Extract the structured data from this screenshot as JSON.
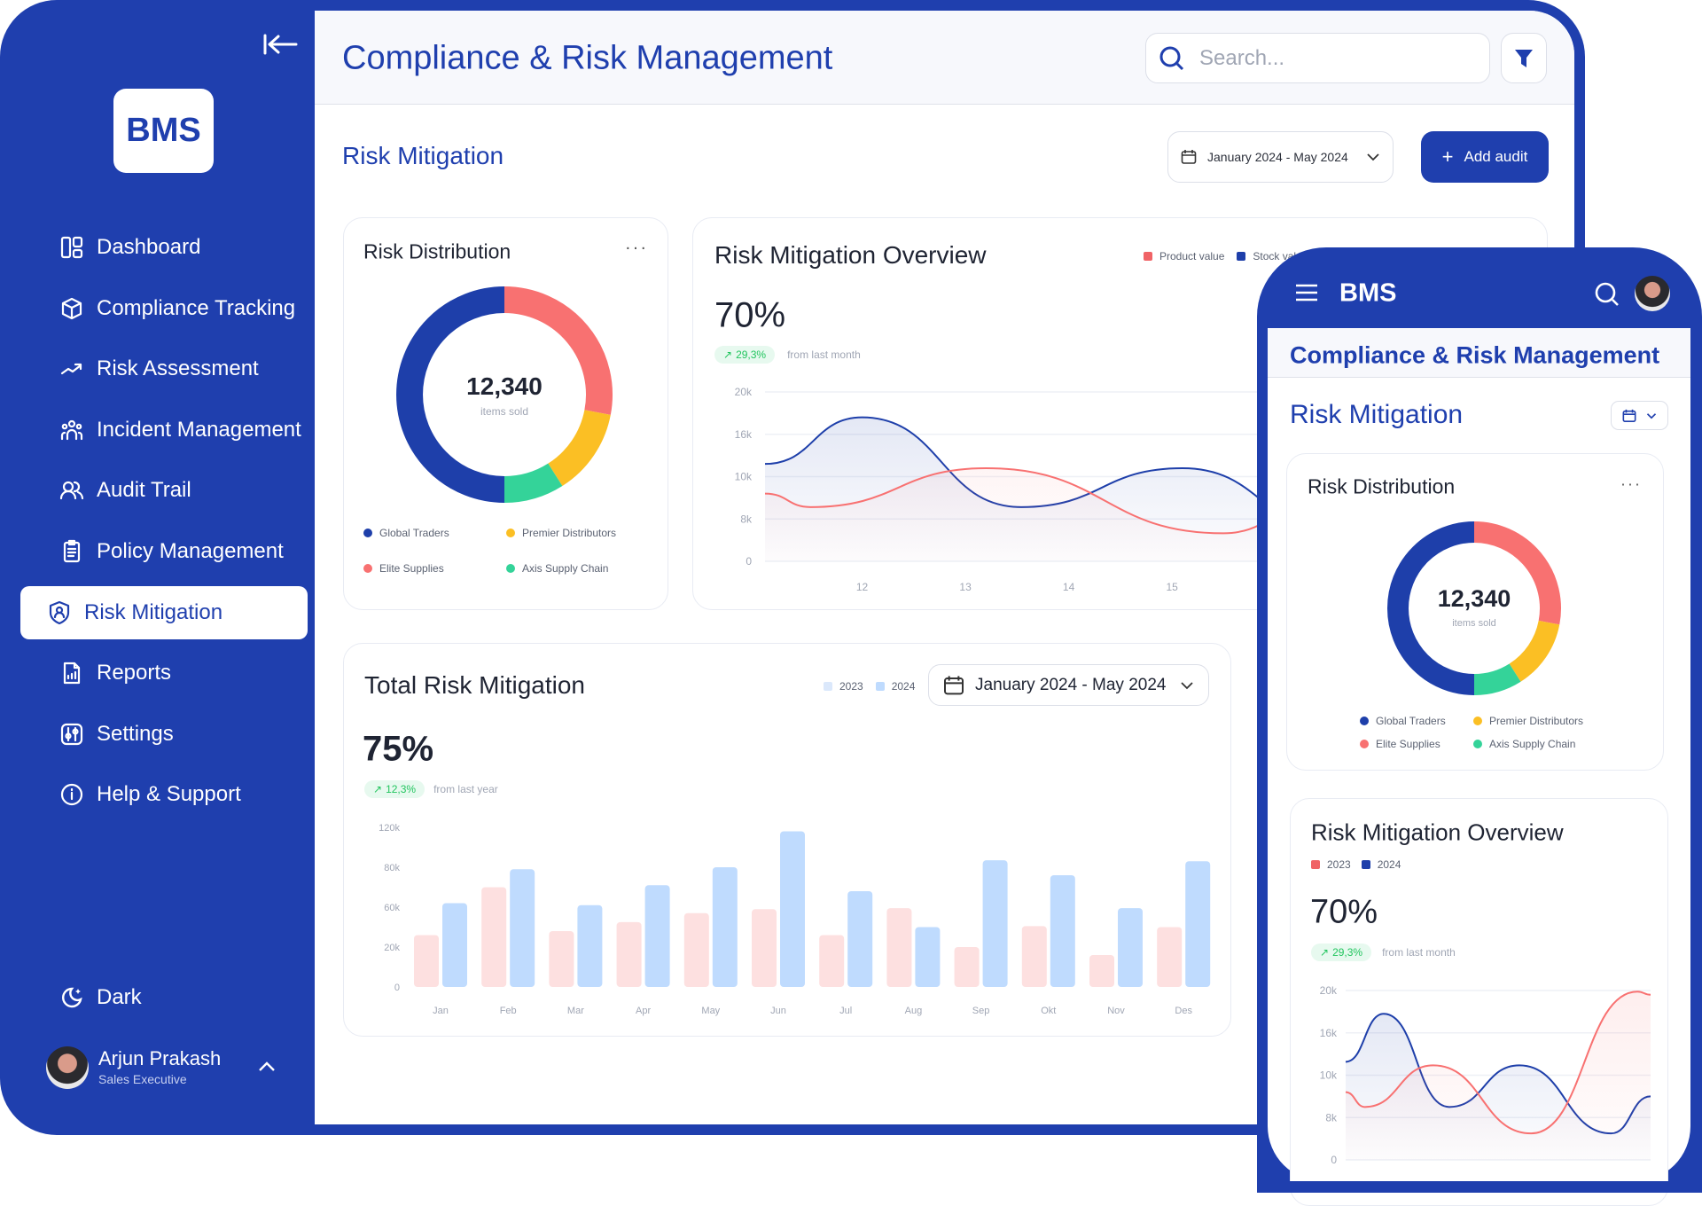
{
  "app": {
    "logo": "BMS",
    "title": "Compliance & Risk Management",
    "section": "Risk Mitigation"
  },
  "search": {
    "placeholder": "Search..."
  },
  "toolbar": {
    "date_range": "January 2024 - May 2024",
    "add_audit": "Add audit"
  },
  "sidebar": {
    "items": [
      {
        "label": "Dashboard",
        "icon": "dashboard-icon"
      },
      {
        "label": "Compliance Tracking",
        "icon": "box-icon"
      },
      {
        "label": "Risk Assessment",
        "icon": "trending-up-icon"
      },
      {
        "label": "Incident Management",
        "icon": "users-icon"
      },
      {
        "label": "Audit Trail",
        "icon": "user-group-icon"
      },
      {
        "label": "Policy Management",
        "icon": "clipboard-icon"
      },
      {
        "label": "Risk Mitigation",
        "icon": "shield-user-icon",
        "active": true
      },
      {
        "label": "Reports",
        "icon": "report-icon"
      },
      {
        "label": "Settings",
        "icon": "sliders-icon"
      },
      {
        "label": "Help & Support",
        "icon": "info-icon"
      }
    ],
    "theme_toggle": "Dark",
    "user": {
      "name": "Arjun Prakash",
      "role": "Sales Executive"
    }
  },
  "colors": {
    "brand": "#1f3fae",
    "positive": "#22c55e",
    "red": "#f87171",
    "yellow": "#fbbf24",
    "green": "#34d399",
    "bar2023": "#fde0e0",
    "bar2024": "#bfdbfe"
  },
  "risk_distribution": {
    "title": "Risk Distribution",
    "total": "12,340",
    "total_label": "items sold"
  },
  "overview": {
    "title": "Risk Mitigation Overview",
    "value": "70%",
    "change": "29,3%",
    "change_label": "from last month"
  },
  "total": {
    "title": "Total Risk Mitigation",
    "value": "75%",
    "change": "12,3%",
    "change_label": "from last year",
    "date_range": "January 2024 - May 2024"
  },
  "phone": {
    "logo": "BMS",
    "title": "Compliance & Risk Management",
    "section": "Risk Mitigation"
  },
  "chart_data": [
    {
      "type": "pie",
      "donut": true,
      "title": "Risk Distribution",
      "slices": [
        {
          "name": "Elite Supplies",
          "value": 28,
          "color": "#f87171"
        },
        {
          "name": "Premier Distributors",
          "value": 13,
          "color": "#fbbf24"
        },
        {
          "name": "Axis Supply Chain",
          "value": 9,
          "color": "#34d399"
        },
        {
          "name": "Global Traders",
          "value": 50,
          "color": "#1e3faa"
        }
      ],
      "legend": [
        "Global Traders",
        "Premier Distributors",
        "Elite Supplies",
        "Axis Supply Chain"
      ]
    },
    {
      "type": "area",
      "title": "Risk Mitigation Overview",
      "yticks": [
        0,
        8000,
        10000,
        16000,
        20000
      ],
      "ytick_labels": [
        "0",
        "8k",
        "10k",
        "16k",
        "20k"
      ],
      "xlim": [
        11.06,
        18.5
      ],
      "xticks": [
        12,
        13,
        14,
        15
      ],
      "grid": true,
      "legend_position": "top-right",
      "series": [
        {
          "name": "Product value",
          "color": "#f87171",
          "points": [
            [
              11.06,
              9200
            ],
            [
              11.5,
              8560
            ],
            [
              13.2,
              11200
            ],
            [
              15.5,
              5300
            ],
            [
              17.3,
              19800
            ],
            [
              18.5,
              19000
            ]
          ]
        },
        {
          "name": "Stock value",
          "color": "#1e3faa",
          "points": [
            [
              11.06,
              11800
            ],
            [
              12,
              17600
            ],
            [
              13.54,
              8560
            ],
            [
              15.1,
              11200
            ],
            [
              16.6,
              6000
            ],
            [
              18.5,
              9000
            ]
          ]
        }
      ]
    },
    {
      "type": "bar",
      "title": "Total Risk Mitigation",
      "categories": [
        "Jan",
        "Feb",
        "Mar",
        "Apr",
        "May",
        "Jun",
        "Jul",
        "Aug",
        "Sep",
        "Okt",
        "Nov",
        "Des"
      ],
      "yticks": [
        0,
        20000,
        60000,
        80000,
        120000
      ],
      "ytick_labels": [
        "0",
        "20k",
        "60k",
        "80k",
        "120k"
      ],
      "legend_position": "top-right",
      "series": [
        {
          "name": "2023",
          "color": "#fde0e0",
          "values": [
            32000,
            70000,
            36000,
            45000,
            54000,
            58000,
            32000,
            59000,
            20000,
            41000,
            16000,
            40000
          ]
        },
        {
          "name": "2024",
          "color": "#bfdbfe",
          "values": [
            62000,
            79000,
            61000,
            71000,
            80000,
            116000,
            68000,
            40000,
            87000,
            76000,
            59000,
            86000
          ]
        }
      ]
    },
    {
      "type": "area",
      "title": "Risk Mitigation Overview",
      "yticks": [
        0,
        8000,
        10000,
        16000,
        20000
      ],
      "ytick_labels": [
        "0",
        "8k",
        "10k",
        "16k",
        "20k"
      ],
      "xlim": [
        11.43,
        18.4
      ],
      "grid": true,
      "legend_position": "top-left",
      "series": [
        {
          "name": "2023",
          "color": "#f87171",
          "points": [
            [
              11.43,
              9200
            ],
            [
              11.87,
              8500
            ],
            [
              13.43,
              11400
            ],
            [
              15.67,
              5000
            ],
            [
              18.1,
              19900
            ],
            [
              18.4,
              19600
            ]
          ]
        },
        {
          "name": "2024",
          "color": "#1e3faa",
          "points": [
            [
              11.43,
              11900
            ],
            [
              12.3,
              17800
            ],
            [
              13.8,
              8500
            ],
            [
              15.4,
              11400
            ],
            [
              17.5,
              5000
            ],
            [
              18.4,
              9000
            ]
          ]
        }
      ]
    }
  ]
}
